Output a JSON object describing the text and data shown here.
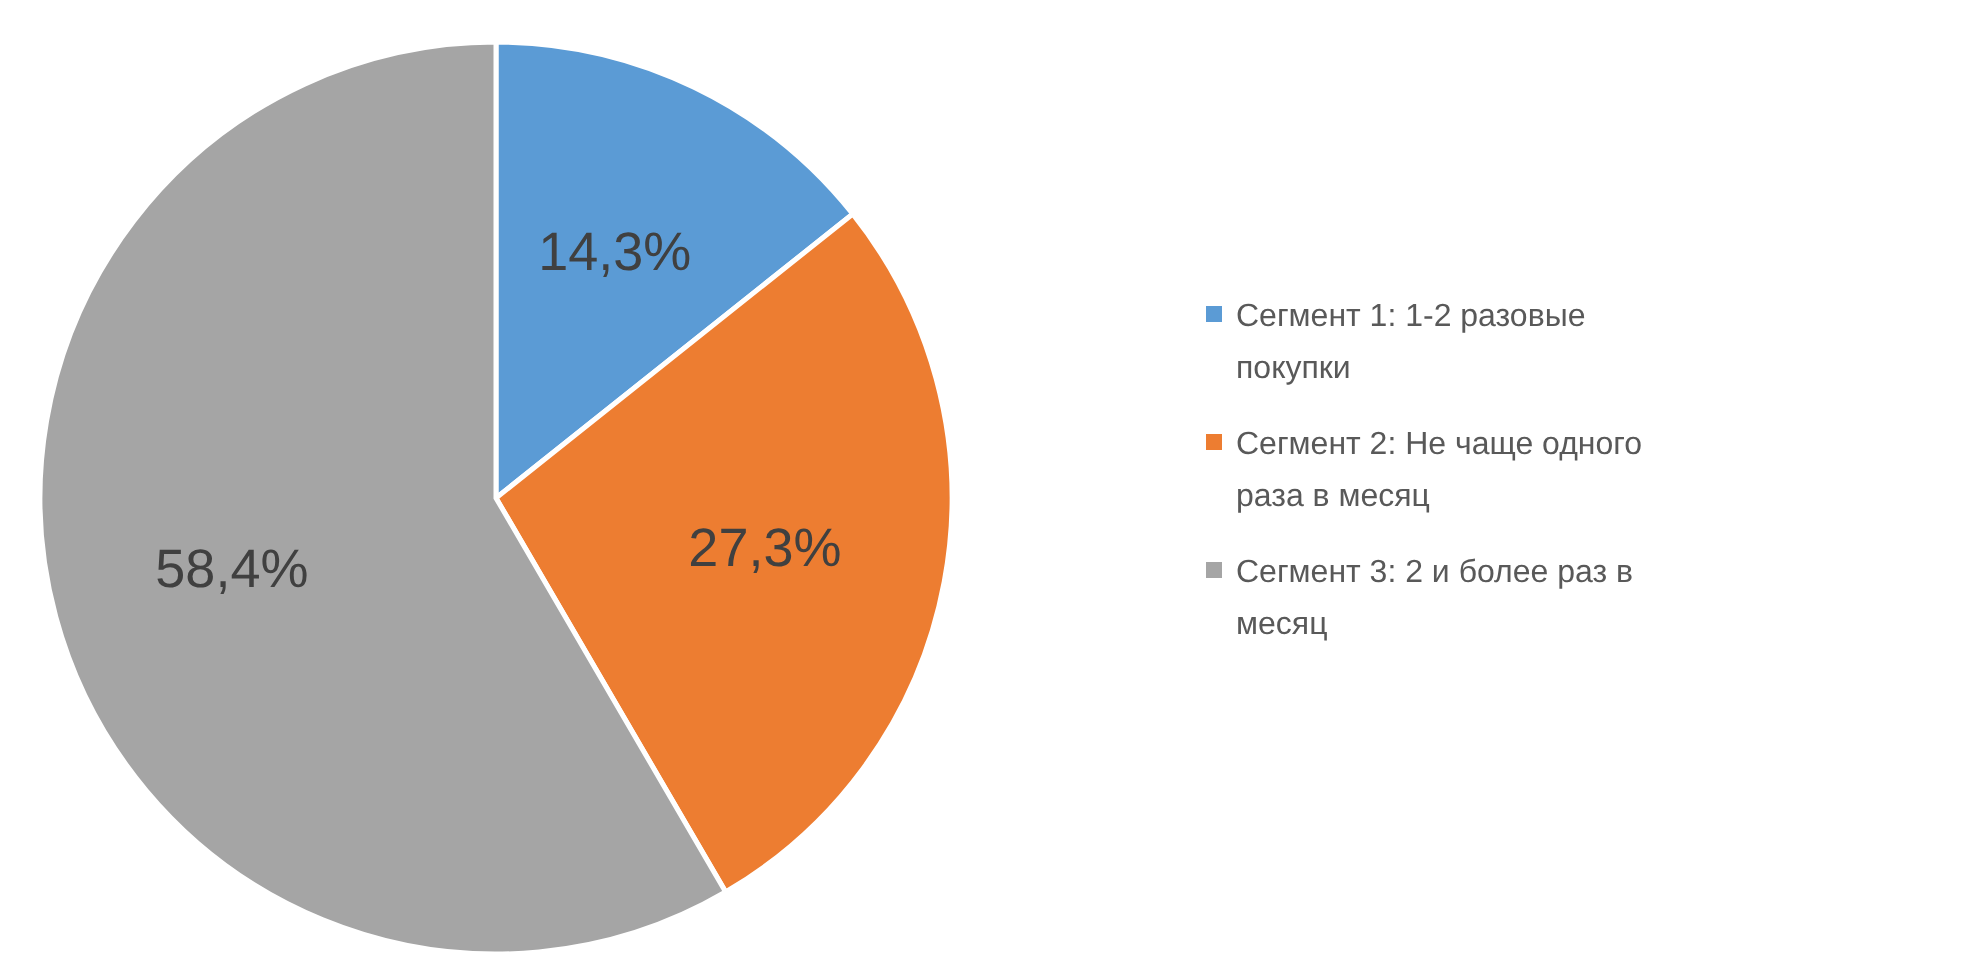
{
  "chart_data": {
    "type": "pie",
    "categories": [
      "Сегмент 1: 1-2 разовые покупки",
      "Сегмент 2: Не чаще одного раза в месяц",
      "Сегмент 3: 2 и более раз в месяц"
    ],
    "values": [
      14.3,
      27.3,
      58.4
    ],
    "value_labels": [
      "14,3%",
      "27,3%",
      "58,4%"
    ],
    "colors": [
      "#5b9bd5",
      "#ed7d31",
      "#a5a5a5"
    ],
    "legend": "right"
  }
}
